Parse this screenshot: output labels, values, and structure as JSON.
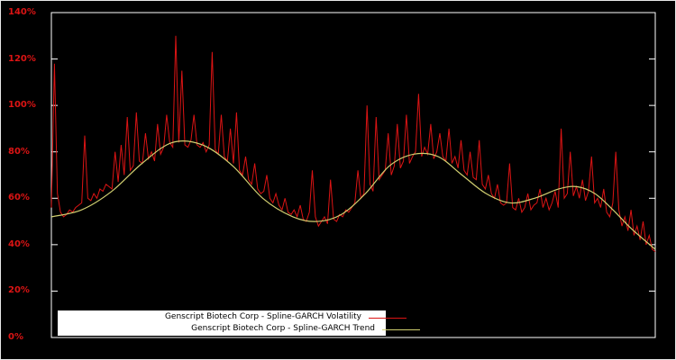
{
  "frame": {
    "background": "#000000",
    "outer_border_color": "#e8e8e8",
    "plot_border_color": "#ffffff"
  },
  "axes": {
    "y_tick_labels": [
      "0%",
      "20%",
      "40%",
      "60%",
      "80%",
      "100%",
      "120%",
      "140%"
    ],
    "y_min": 0,
    "y_max": 140,
    "y_tick_step": 20,
    "tick_label_color": "#dc1414",
    "x_tick_labels": []
  },
  "legend": {
    "background": "#ffffff",
    "text_color": "#000000",
    "items": [
      {
        "label": "Genscript Biotech Corp - Spline-GARCH Volatility",
        "color": "#dc1414"
      },
      {
        "label": "Genscript Biotech Corp - Spline-GARCH Trend",
        "color": "#d1cf70"
      }
    ]
  },
  "chart_data": {
    "type": "line",
    "title": "",
    "xlabel": "",
    "ylabel": "",
    "ylim": [
      0,
      140
    ],
    "y_unit": "%",
    "grid": false,
    "background": "#000000",
    "legend_position": "bottom-center",
    "series": [
      {
        "name": "Genscript Biotech Corp - Spline-GARCH Volatility",
        "color": "#dc1414",
        "style": "noisy-line",
        "x_range": [
          0,
          1
        ],
        "y": [
          56,
          118,
          62,
          54,
          52,
          53,
          55,
          54,
          56,
          57,
          58,
          87,
          60,
          59,
          62,
          60,
          64,
          63,
          66,
          65,
          64,
          80,
          67,
          83,
          70,
          95,
          72,
          74,
          97,
          76,
          75,
          88,
          77,
          80,
          76,
          92,
          79,
          82,
          96,
          84,
          82,
          130,
          84,
          115,
          83,
          82,
          85,
          96,
          83,
          82,
          84,
          80,
          83,
          123,
          81,
          79,
          96,
          78,
          76,
          90,
          75,
          97,
          72,
          70,
          78,
          68,
          66,
          75,
          64,
          62,
          63,
          70,
          60,
          58,
          62,
          57,
          55,
          60,
          54,
          53,
          55,
          52,
          57,
          51,
          50,
          54,
          72,
          52,
          48,
          50,
          52,
          49,
          68,
          51,
          50,
          53,
          52,
          55,
          54,
          56,
          58,
          72,
          60,
          62,
          100,
          66,
          63,
          95,
          68,
          70,
          72,
          88,
          70,
          74,
          92,
          73,
          76,
          96,
          75,
          78,
          80,
          105,
          78,
          82,
          79,
          92,
          77,
          80,
          88,
          78,
          76,
          90,
          75,
          78,
          73,
          85,
          72,
          70,
          80,
          69,
          68,
          85,
          66,
          64,
          70,
          62,
          60,
          66,
          58,
          57,
          58,
          75,
          56,
          55,
          60,
          54,
          56,
          62,
          55,
          57,
          58,
          64,
          56,
          60,
          55,
          58,
          63,
          56,
          90,
          60,
          62,
          80,
          61,
          65,
          60,
          68,
          59,
          63,
          78,
          58,
          60,
          56,
          64,
          54,
          52,
          58,
          80,
          55,
          48,
          52,
          46,
          55,
          44,
          48,
          42,
          50,
          40,
          44,
          38,
          37
        ]
      },
      {
        "name": "Genscript Biotech Corp - Spline-GARCH Trend",
        "color": "#d1cf70",
        "style": "smooth-line",
        "x": [
          0,
          0.05,
          0.1,
          0.15,
          0.2,
          0.25,
          0.3,
          0.35,
          0.4,
          0.44,
          0.48,
          0.52,
          0.56,
          0.6,
          0.64,
          0.68,
          0.72,
          0.76,
          0.8,
          0.84,
          0.87,
          0.9,
          0.93,
          0.96,
          1.0
        ],
        "y": [
          52,
          55,
          63,
          75,
          84,
          83,
          74,
          60,
          52,
          50,
          53,
          62,
          74,
          79,
          78,
          70,
          62,
          58,
          60,
          64,
          65,
          62,
          55,
          47,
          38
        ]
      }
    ]
  }
}
